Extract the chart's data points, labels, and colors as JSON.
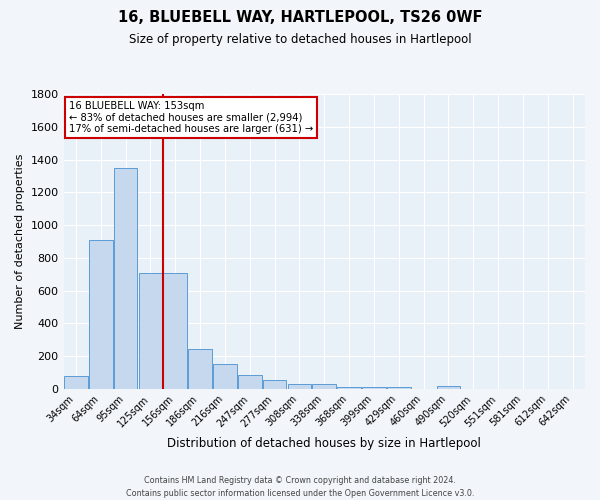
{
  "title": "16, BLUEBELL WAY, HARTLEPOOL, TS26 0WF",
  "subtitle": "Size of property relative to detached houses in Hartlepool",
  "xlabel": "Distribution of detached houses by size in Hartlepool",
  "ylabel": "Number of detached properties",
  "bar_color": "#c5d8ee",
  "bar_edge_color": "#5b9bd5",
  "background_color": "#e8f0f8",
  "grid_color": "#ffffff",
  "categories": [
    "34sqm",
    "64sqm",
    "95sqm",
    "125sqm",
    "156sqm",
    "186sqm",
    "216sqm",
    "247sqm",
    "277sqm",
    "308sqm",
    "338sqm",
    "368sqm",
    "399sqm",
    "429sqm",
    "460sqm",
    "490sqm",
    "520sqm",
    "551sqm",
    "581sqm",
    "612sqm",
    "642sqm"
  ],
  "values": [
    80,
    910,
    1350,
    710,
    710,
    245,
    150,
    85,
    55,
    30,
    30,
    10,
    10,
    10,
    0,
    20,
    0,
    0,
    0,
    0,
    0
  ],
  "vline_x": 3.5,
  "vline_color": "#cc0000",
  "annotation_line1": "16 BLUEBELL WAY: 153sqm",
  "annotation_line2": "← 83% of detached houses are smaller (2,994)",
  "annotation_line3": "17% of semi-detached houses are larger (631) →",
  "annotation_box_color": "#ffffff",
  "annotation_box_edge": "#cc0000",
  "ylim": [
    0,
    1800
  ],
  "yticks": [
    0,
    200,
    400,
    600,
    800,
    1000,
    1200,
    1400,
    1600,
    1800
  ],
  "footer": "Contains HM Land Registry data © Crown copyright and database right 2024.\nContains public sector information licensed under the Open Government Licence v3.0.",
  "fig_bg": "#f2f6fa"
}
